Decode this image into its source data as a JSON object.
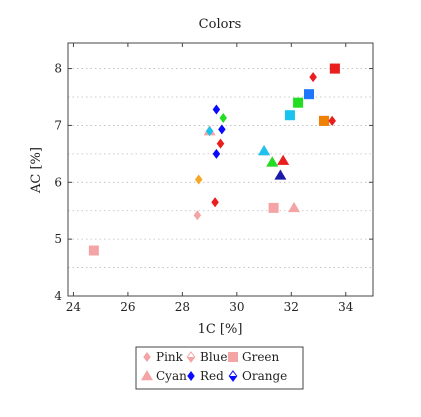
{
  "chart_data": {
    "type": "scatter",
    "title": "Colors",
    "xlabel": "1C [%]",
    "ylabel": "AC [%]",
    "xlim": [
      23.8,
      35.0
    ],
    "ylim": [
      4.0,
      8.45
    ],
    "xticks": [
      24,
      26,
      28,
      30,
      32,
      34
    ],
    "yticks": [
      4,
      5,
      6,
      7,
      8
    ],
    "grid": "dotted horizontal minor",
    "legend_position": "bottom-center",
    "legend_entries": [
      "Pink",
      "Blue",
      "Green",
      "Cyan",
      "Red",
      "Orange"
    ],
    "series": [
      {
        "color": "#f4a4a4",
        "marker": "diamond",
        "points": [
          [
            28.55,
            5.42
          ],
          [
            29.2,
            5.65
          ],
          [
            29.4,
            6.68
          ],
          [
            32.8,
            7.85
          ],
          [
            33.5,
            7.08
          ]
        ]
      },
      {
        "color": "#f4a4a4",
        "marker": "square",
        "points": [
          [
            24.75,
            4.8
          ],
          [
            31.35,
            5.55
          ],
          [
            33.2,
            7.08
          ],
          [
            33.6,
            8.0
          ]
        ]
      },
      {
        "color": "#f4a4a4",
        "marker": "triangle",
        "points": [
          [
            29.0,
            6.9
          ],
          [
            32.1,
            5.55
          ],
          [
            31.3,
            6.35
          ],
          [
            31.7,
            6.38
          ],
          [
            31.0,
            6.55
          ]
        ]
      },
      {
        "color": "#f5a623",
        "marker": "diamond",
        "points": [
          [
            28.6,
            6.05
          ]
        ]
      },
      {
        "color": "#f08000",
        "marker": "square",
        "points": [
          [
            33.2,
            7.08
          ]
        ]
      },
      {
        "color": "#e91e1e",
        "marker": "diamond",
        "points": [
          [
            32.8,
            7.85
          ],
          [
            33.5,
            7.08
          ],
          [
            29.4,
            6.68
          ],
          [
            29.2,
            5.65
          ]
        ]
      },
      {
        "color": "#e91e1e",
        "marker": "square",
        "points": [
          [
            33.6,
            8.0
          ]
        ]
      },
      {
        "color": "#e91e1e",
        "marker": "triangle",
        "points": [
          [
            31.7,
            6.38
          ]
        ]
      },
      {
        "color": "#1f77ff",
        "marker": "square",
        "points": [
          [
            32.65,
            7.55
          ]
        ]
      },
      {
        "color": "#0a0aff",
        "marker": "diamond",
        "points": [
          [
            29.25,
            6.5
          ],
          [
            29.45,
            6.93
          ],
          [
            29.25,
            7.28
          ]
        ]
      },
      {
        "color": "#1a1aa8",
        "marker": "triangle",
        "points": [
          [
            31.6,
            6.12
          ]
        ]
      },
      {
        "color": "#19c3ee",
        "marker": "square",
        "points": [
          [
            31.95,
            7.18
          ]
        ]
      },
      {
        "color": "#19c3ee",
        "marker": "triangle",
        "points": [
          [
            31.0,
            6.55
          ]
        ]
      },
      {
        "color": "#19c3ee",
        "marker": "diamond",
        "points": [
          [
            29.0,
            6.9
          ]
        ]
      },
      {
        "color": "#22dd22",
        "marker": "square",
        "points": [
          [
            32.25,
            7.4
          ]
        ]
      },
      {
        "color": "#22dd22",
        "marker": "triangle",
        "points": [
          [
            31.3,
            6.35
          ]
        ]
      },
      {
        "color": "#22dd22",
        "marker": "diamond",
        "points": [
          [
            29.5,
            7.13
          ]
        ]
      }
    ]
  },
  "legend": {
    "items": [
      {
        "label": "Pink",
        "marker": "diamond",
        "color": "#f4a4a4"
      },
      {
        "label": "Blue",
        "marker": "diamond-half",
        "color": "#f4a4a4"
      },
      {
        "label": "Green",
        "marker": "square",
        "color": "#f4a4a4"
      },
      {
        "label": "Cyan",
        "marker": "triangle",
        "color": "#f4a4a4"
      },
      {
        "label": "Red",
        "marker": "diamond",
        "color": "#0a0aff"
      },
      {
        "label": "Orange",
        "marker": "diamond-half",
        "color": "#0a0aff"
      }
    ]
  }
}
